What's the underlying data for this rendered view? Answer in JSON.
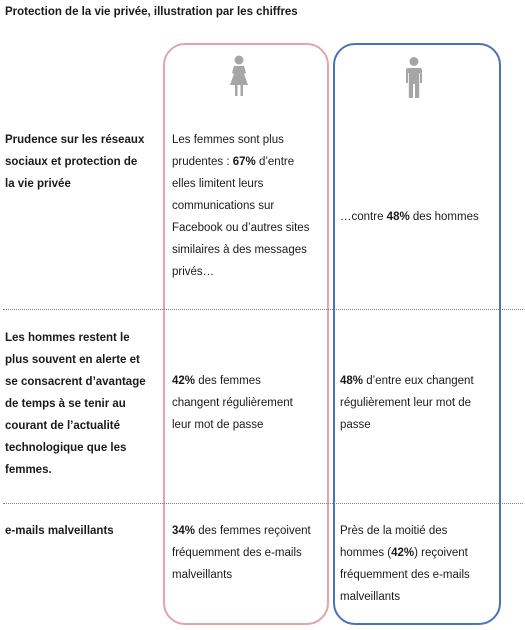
{
  "title": "Protection de la vie privée, illustration par les chiffres",
  "icons": {
    "women": "woman-icon",
    "men": "man-icon"
  },
  "colors": {
    "women_border": "#e2a6a6",
    "men_border": "#4a72b8",
    "figure": "#a6a6a6"
  },
  "rows": [
    {
      "label_lines": [
        "Prudence sur les réseaux",
        "sociaux et protection de",
        "la vie privée"
      ],
      "women": {
        "lines": [
          {
            "pre": "Les femmes sont plus",
            "b": "",
            "post": ""
          },
          {
            "pre": "prudentes : ",
            "b": "67%",
            "post": " d’entre"
          },
          {
            "pre": "elles limitent leurs",
            "b": "",
            "post": ""
          },
          {
            "pre": "communications sur",
            "b": "",
            "post": ""
          },
          {
            "pre": "Facebook ou d’autres sites",
            "b": "",
            "post": ""
          },
          {
            "pre": "similaires à des messages",
            "b": "",
            "post": ""
          },
          {
            "pre": "privés…",
            "b": "",
            "post": ""
          }
        ]
      },
      "men": {
        "lines": [
          {
            "pre": "…contre ",
            "b": "48%",
            "post": " des hommes"
          }
        ]
      }
    },
    {
      "label_lines": [
        "Les hommes restent le",
        "plus souvent en alerte et",
        "se consacrent d’avantage",
        "de temps à  se tenir au",
        "courant de l’actualité",
        "technologique que les",
        "femmes."
      ],
      "women": {
        "lines": [
          {
            "pre": "",
            "b": "42%",
            "post": " des femmes"
          },
          {
            "pre": "changent régulièrement",
            "b": "",
            "post": ""
          },
          {
            "pre": "leur mot de passe",
            "b": "",
            "post": ""
          }
        ]
      },
      "men": {
        "lines": [
          {
            "pre": "",
            "b": "48%",
            "post": " d’entre eux changent"
          },
          {
            "pre": "régulièrement leur mot de",
            "b": "",
            "post": ""
          },
          {
            "pre": "passe",
            "b": "",
            "post": ""
          }
        ]
      }
    },
    {
      "label_lines": [
        "e-mails malveillants"
      ],
      "women": {
        "lines": [
          {
            "pre": "",
            "b": "34%",
            "post": " des femmes reçoivent"
          },
          {
            "pre": "fréquemment des e-mails",
            "b": "",
            "post": ""
          },
          {
            "pre": "malveillants",
            "b": "",
            "post": ""
          }
        ]
      },
      "men": {
        "lines": [
          {
            "pre": "Près de la moitié des",
            "b": "",
            "post": ""
          },
          {
            "pre": "hommes (",
            "b": "42%",
            "post": ") reçoivent"
          },
          {
            "pre": "fréquemment des e-mails",
            "b": "",
            "post": ""
          },
          {
            "pre": "malveillants",
            "b": "",
            "post": ""
          }
        ]
      }
    }
  ]
}
